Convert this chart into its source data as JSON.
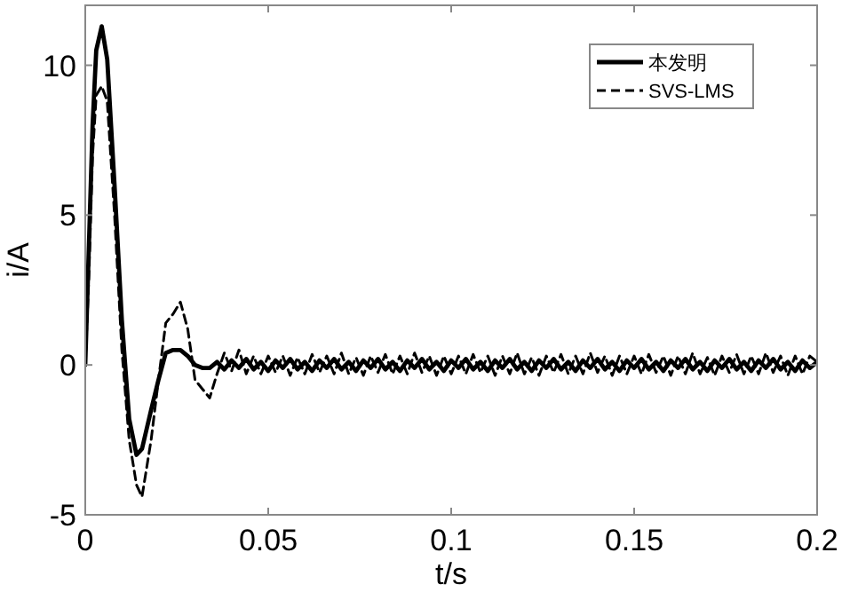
{
  "chart_data": {
    "type": "line",
    "xlabel": "t/s",
    "ylabel": "i/A",
    "x": [
      0,
      0.001,
      0.002,
      0.003,
      0.0045,
      0.006,
      0.008,
      0.01,
      0.012,
      0.014,
      0.0155,
      0.018,
      0.02,
      0.022,
      0.024,
      0.026,
      0.028,
      0.03,
      0.032,
      0.034,
      0.036,
      0.038,
      0.04,
      0.042,
      0.044,
      0.046,
      0.048,
      0.05,
      0.052,
      0.054,
      0.056,
      0.058,
      0.06,
      0.062,
      0.064,
      0.066,
      0.068,
      0.07,
      0.072,
      0.074,
      0.076,
      0.078,
      0.08,
      0.082,
      0.084,
      0.086,
      0.088,
      0.09,
      0.092,
      0.094,
      0.096,
      0.098,
      0.1,
      0.102,
      0.104,
      0.106,
      0.108,
      0.11,
      0.112,
      0.114,
      0.116,
      0.118,
      0.12,
      0.122,
      0.124,
      0.126,
      0.128,
      0.13,
      0.132,
      0.134,
      0.136,
      0.138,
      0.14,
      0.142,
      0.144,
      0.146,
      0.148,
      0.15,
      0.152,
      0.154,
      0.156,
      0.158,
      0.16,
      0.162,
      0.164,
      0.166,
      0.168,
      0.17,
      0.172,
      0.174,
      0.176,
      0.178,
      0.18,
      0.182,
      0.184,
      0.186,
      0.188,
      0.19,
      0.192,
      0.194,
      0.196,
      0.198,
      0.2
    ],
    "series": [
      {
        "name": "本发明",
        "color": "#000000",
        "line_style": "solid",
        "values": [
          0,
          4,
          8,
          10.5,
          11.3,
          10.2,
          6,
          1.5,
          -1.8,
          -3,
          -2.8,
          -1.5,
          -0.5,
          0.4,
          0.5,
          0.5,
          0.3,
          0,
          -0.1,
          -0.1,
          0.1,
          -0.15,
          0.15,
          -0.1,
          0.2,
          -0.15,
          0.1,
          -0.2,
          0.15,
          -0.1,
          0.2,
          -0.15,
          0.1,
          -0.2,
          0.15,
          -0.1,
          0.2,
          -0.15,
          0.1,
          -0.2,
          0.15,
          -0.1,
          0.2,
          -0.15,
          0.1,
          -0.2,
          0.15,
          -0.1,
          0.2,
          -0.15,
          0.1,
          -0.2,
          0.15,
          -0.1,
          0.2,
          -0.15,
          0.1,
          -0.2,
          0.15,
          -0.1,
          0.2,
          -0.15,
          0.1,
          -0.2,
          0.15,
          -0.1,
          0.2,
          -0.15,
          0.1,
          -0.2,
          0.15,
          -0.1,
          0.2,
          -0.15,
          0.1,
          -0.2,
          0.15,
          -0.1,
          0.2,
          -0.15,
          0.1,
          -0.2,
          0.15,
          -0.1,
          0.2,
          -0.15,
          0.1,
          -0.2,
          0.15,
          -0.1,
          0.2,
          -0.15,
          0.1,
          -0.2,
          0.15,
          -0.1,
          0.2,
          -0.15,
          0.1,
          -0.2,
          0.15,
          -0.1,
          0.1
        ]
      },
      {
        "name": "SVS-LMS",
        "color": "#000000",
        "line_style": "dashed",
        "values": [
          0,
          3,
          7,
          9,
          9.3,
          8.8,
          5,
          0.5,
          -2.5,
          -4,
          -4.4,
          -2.5,
          -0.5,
          1.4,
          1.7,
          2.1,
          1.2,
          -0.5,
          -0.8,
          -1.1,
          -0.3,
          0.4,
          -0.2,
          0.5,
          -0.3,
          0.3,
          -0.3,
          0.3,
          -0.25,
          0.3,
          -0.35,
          0.25,
          -0.3,
          0.35,
          -0.25,
          0.3,
          -0.3,
          0.4,
          -0.3,
          0.25,
          -0.35,
          0.3,
          -0.25,
          0.35,
          -0.3,
          0.3,
          -0.3,
          0.4,
          -0.25,
          0.3,
          -0.35,
          0.3,
          -0.3,
          0.3,
          -0.3,
          0.35,
          -0.25,
          0.3,
          -0.35,
          0.3,
          -0.3,
          0.4,
          -0.3,
          0.25,
          -0.35,
          0.3,
          -0.25,
          0.35,
          -0.3,
          0.3,
          -0.3,
          0.4,
          -0.25,
          0.3,
          -0.35,
          0.3,
          -0.3,
          0.3,
          -0.3,
          0.35,
          -0.25,
          0.3,
          -0.35,
          0.3,
          -0.3,
          0.4,
          -0.3,
          0.25,
          -0.35,
          0.3,
          -0.25,
          0.35,
          -0.3,
          0.3,
          -0.3,
          0.4,
          -0.25,
          0.3,
          -0.35,
          0.3,
          -0.3,
          0.3,
          0.1
        ]
      }
    ],
    "xlim": [
      0,
      0.2
    ],
    "xticks": [
      0,
      0.05,
      0.1,
      0.15,
      0.2
    ],
    "ylim": [
      -5,
      12
    ],
    "yticks": [
      -5,
      0,
      5,
      10
    ],
    "grid": false,
    "legend": "top right"
  }
}
